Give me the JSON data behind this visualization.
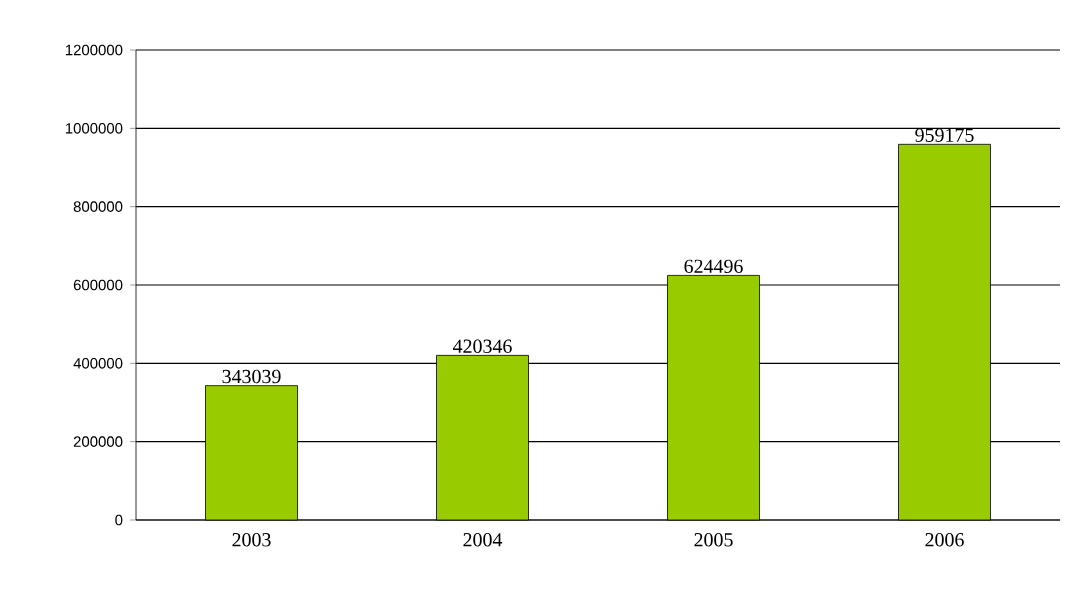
{
  "chart_data": {
    "type": "bar",
    "categories": [
      "2003",
      "2004",
      "2005",
      "2006"
    ],
    "values": [
      343039,
      420346,
      624496,
      959175
    ],
    "color": "#99cc00",
    "ylim": [
      0,
      1200000
    ],
    "yticks": [
      0,
      200000,
      400000,
      600000,
      800000,
      1000000,
      1200000
    ],
    "grid": "y",
    "data_labels": true
  }
}
